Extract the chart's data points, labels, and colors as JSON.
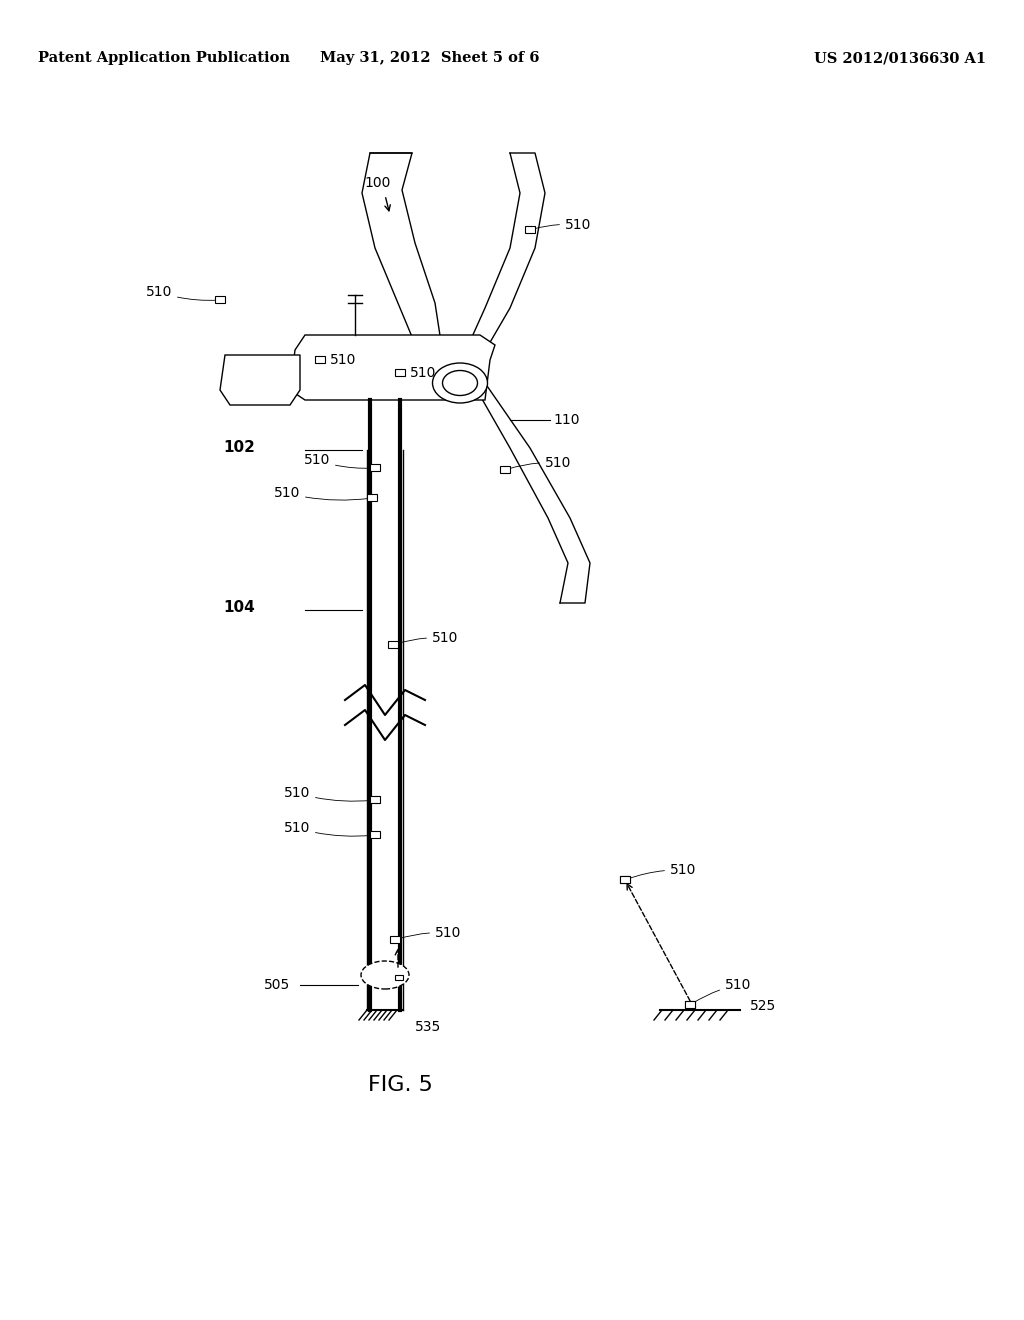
{
  "bg_color": "#ffffff",
  "header_left": "Patent Application Publication",
  "header_center": "May 31, 2012  Sheet 5 of 6",
  "header_right": "US 2012/0136630 A1",
  "fig_label": "FIG. 5",
  "title_fontsize": 10.5,
  "label_fontsize": 10,
  "bold_label_fontsize": 11
}
